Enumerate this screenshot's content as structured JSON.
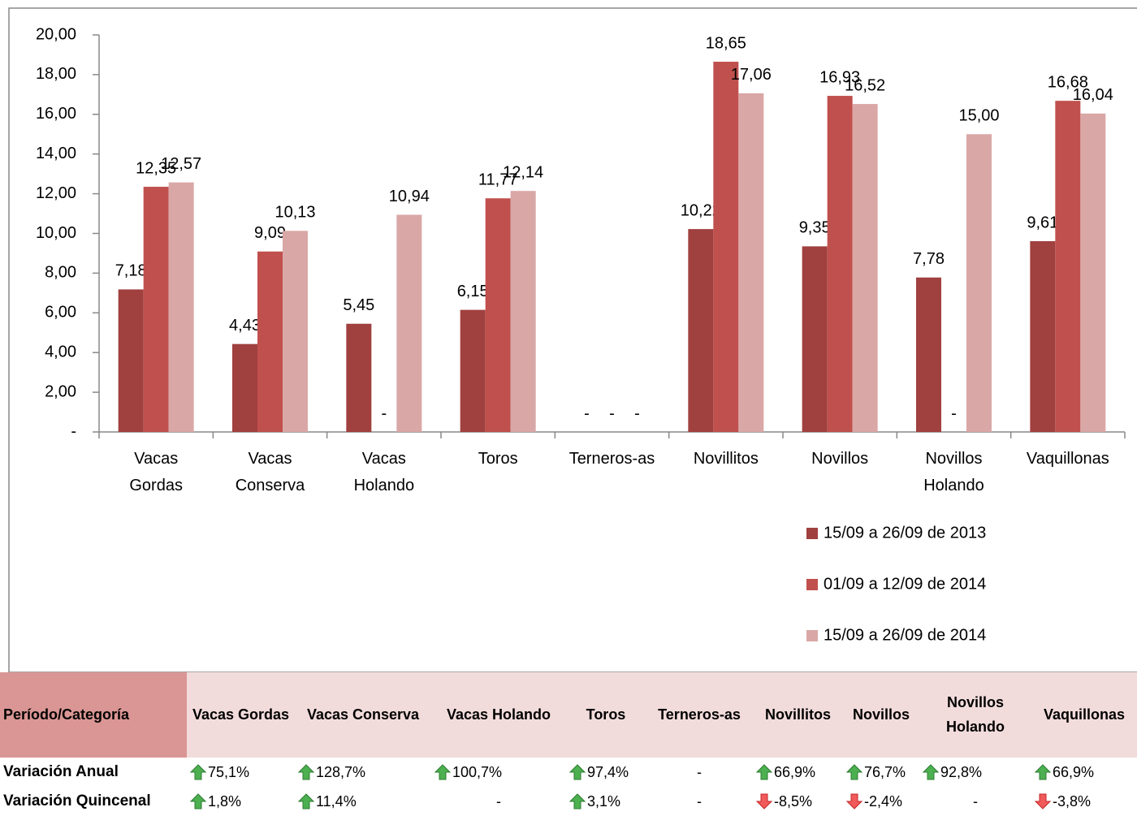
{
  "chart_data": {
    "type": "bar",
    "categories": [
      "Vacas Gordas",
      "Vacas Conserva",
      "Vacas Holando",
      "Toros",
      "Terneros-as",
      "Novillitos",
      "Novillos",
      "Novillos Holando",
      "Vaquillonas"
    ],
    "series": [
      {
        "name": "15/09 a 26/09 de 2013",
        "color": "#a0403f",
        "values": [
          7.18,
          4.43,
          5.45,
          6.15,
          null,
          10.22,
          9.35,
          7.78,
          9.61
        ],
        "value_labels": [
          "7,18",
          "4,43",
          "5,45",
          "6,15",
          "-",
          "10,22",
          "9,35",
          "7,78",
          "9,61"
        ]
      },
      {
        "name": "01/09 a 12/09 de 2014",
        "color": "#c0504d",
        "values": [
          12.35,
          9.09,
          null,
          11.77,
          null,
          18.65,
          16.93,
          null,
          16.68
        ],
        "value_labels": [
          "12,35",
          "9,09",
          "-",
          "11,77",
          "-",
          "18,65",
          "16,93",
          "-",
          "16,68"
        ]
      },
      {
        "name": "15/09 a 26/09 de 2014",
        "color": "#d9a7a6",
        "values": [
          12.57,
          10.13,
          10.94,
          12.14,
          null,
          17.06,
          16.52,
          15.0,
          16.04
        ],
        "value_labels": [
          "12,57",
          "10,13",
          "10,94",
          "12,14",
          "-",
          "17,06",
          "16,52",
          "15,00",
          "16,04"
        ]
      }
    ],
    "ylim": [
      0,
      20
    ],
    "yticks": [
      {
        "value": 0,
        "label": "-"
      },
      {
        "value": 2,
        "label": "2,00"
      },
      {
        "value": 4,
        "label": "4,00"
      },
      {
        "value": 6,
        "label": "6,00"
      },
      {
        "value": 8,
        "label": "8,00"
      },
      {
        "value": 10,
        "label": "10,00"
      },
      {
        "value": 12,
        "label": "12,00"
      },
      {
        "value": 14,
        "label": "14,00"
      },
      {
        "value": 16,
        "label": "16,00"
      },
      {
        "value": 18,
        "label": "18,00"
      },
      {
        "value": 20,
        "label": "20,00"
      }
    ],
    "grid": false,
    "legend": "right"
  },
  "table": {
    "header": [
      "Período/Categoría",
      "Vacas Gordas",
      "Vacas Conserva",
      "Vacas Holando",
      "Toros",
      "Terneros-as",
      "Novillitos",
      "Novillos",
      "Novillos Holando",
      "Vaquillonas"
    ],
    "rows": [
      {
        "label": "Variación Anual",
        "cells": [
          {
            "trend": "up",
            "text": "75,1%"
          },
          {
            "trend": "up",
            "text": "128,7%"
          },
          {
            "trend": "up",
            "text": "100,7%"
          },
          {
            "trend": "up",
            "text": "97,4%"
          },
          {
            "trend": null,
            "text": "-"
          },
          {
            "trend": "up",
            "text": "66,9%"
          },
          {
            "trend": "up",
            "text": "76,7%"
          },
          {
            "trend": "up",
            "text": "92,8%"
          },
          {
            "trend": "up",
            "text": "66,9%"
          }
        ]
      },
      {
        "label": "Variación Quincenal",
        "cells": [
          {
            "trend": "up",
            "text": "1,8%"
          },
          {
            "trend": "up",
            "text": "11,4%"
          },
          {
            "trend": null,
            "text": "-"
          },
          {
            "trend": "up",
            "text": "3,1%"
          },
          {
            "trend": null,
            "text": "-"
          },
          {
            "trend": "down",
            "text": "-8,5%"
          },
          {
            "trend": "down",
            "text": "-2,4%"
          },
          {
            "trend": null,
            "text": "-"
          },
          {
            "trend": "down",
            "text": "-3,8%"
          }
        ]
      }
    ]
  }
}
